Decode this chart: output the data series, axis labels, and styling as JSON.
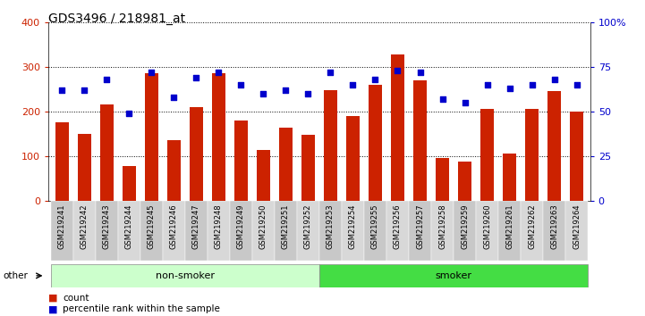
{
  "title": "GDS3496 / 218981_at",
  "categories": [
    "GSM219241",
    "GSM219242",
    "GSM219243",
    "GSM219244",
    "GSM219245",
    "GSM219246",
    "GSM219247",
    "GSM219248",
    "GSM219249",
    "GSM219250",
    "GSM219251",
    "GSM219252",
    "GSM219253",
    "GSM219254",
    "GSM219255",
    "GSM219256",
    "GSM219257",
    "GSM219258",
    "GSM219259",
    "GSM219260",
    "GSM219261",
    "GSM219262",
    "GSM219263",
    "GSM219264"
  ],
  "counts": [
    175,
    150,
    215,
    78,
    285,
    135,
    210,
    285,
    180,
    113,
    163,
    148,
    248,
    190,
    260,
    328,
    270,
    95,
    88,
    205,
    105,
    205,
    245,
    200
  ],
  "percentile_ranks": [
    62,
    62,
    68,
    49,
    72,
    58,
    69,
    72,
    65,
    60,
    62,
    60,
    72,
    65,
    68,
    73,
    72,
    57,
    55,
    65,
    63,
    65,
    68,
    65
  ],
  "non_smoker_count": 12,
  "smoker_count": 12,
  "bar_color": "#cc2200",
  "dot_color": "#0000cc",
  "non_smoker_bg": "#ccffcc",
  "smoker_bg": "#44dd44",
  "ylim_left": [
    0,
    400
  ],
  "ylim_right": [
    0,
    100
  ],
  "yticks_left": [
    0,
    100,
    200,
    300,
    400
  ],
  "yticks_right": [
    0,
    25,
    50,
    75,
    100
  ],
  "ytick_labels_right": [
    "0",
    "25",
    "50",
    "75",
    "100%"
  ],
  "legend_count": "count",
  "legend_pct": "percentile rank within the sample",
  "other_label": "other",
  "non_smoker_label": "non-smoker",
  "smoker_label": "smoker",
  "title_fontsize": 10,
  "plot_bg": "#ffffff"
}
